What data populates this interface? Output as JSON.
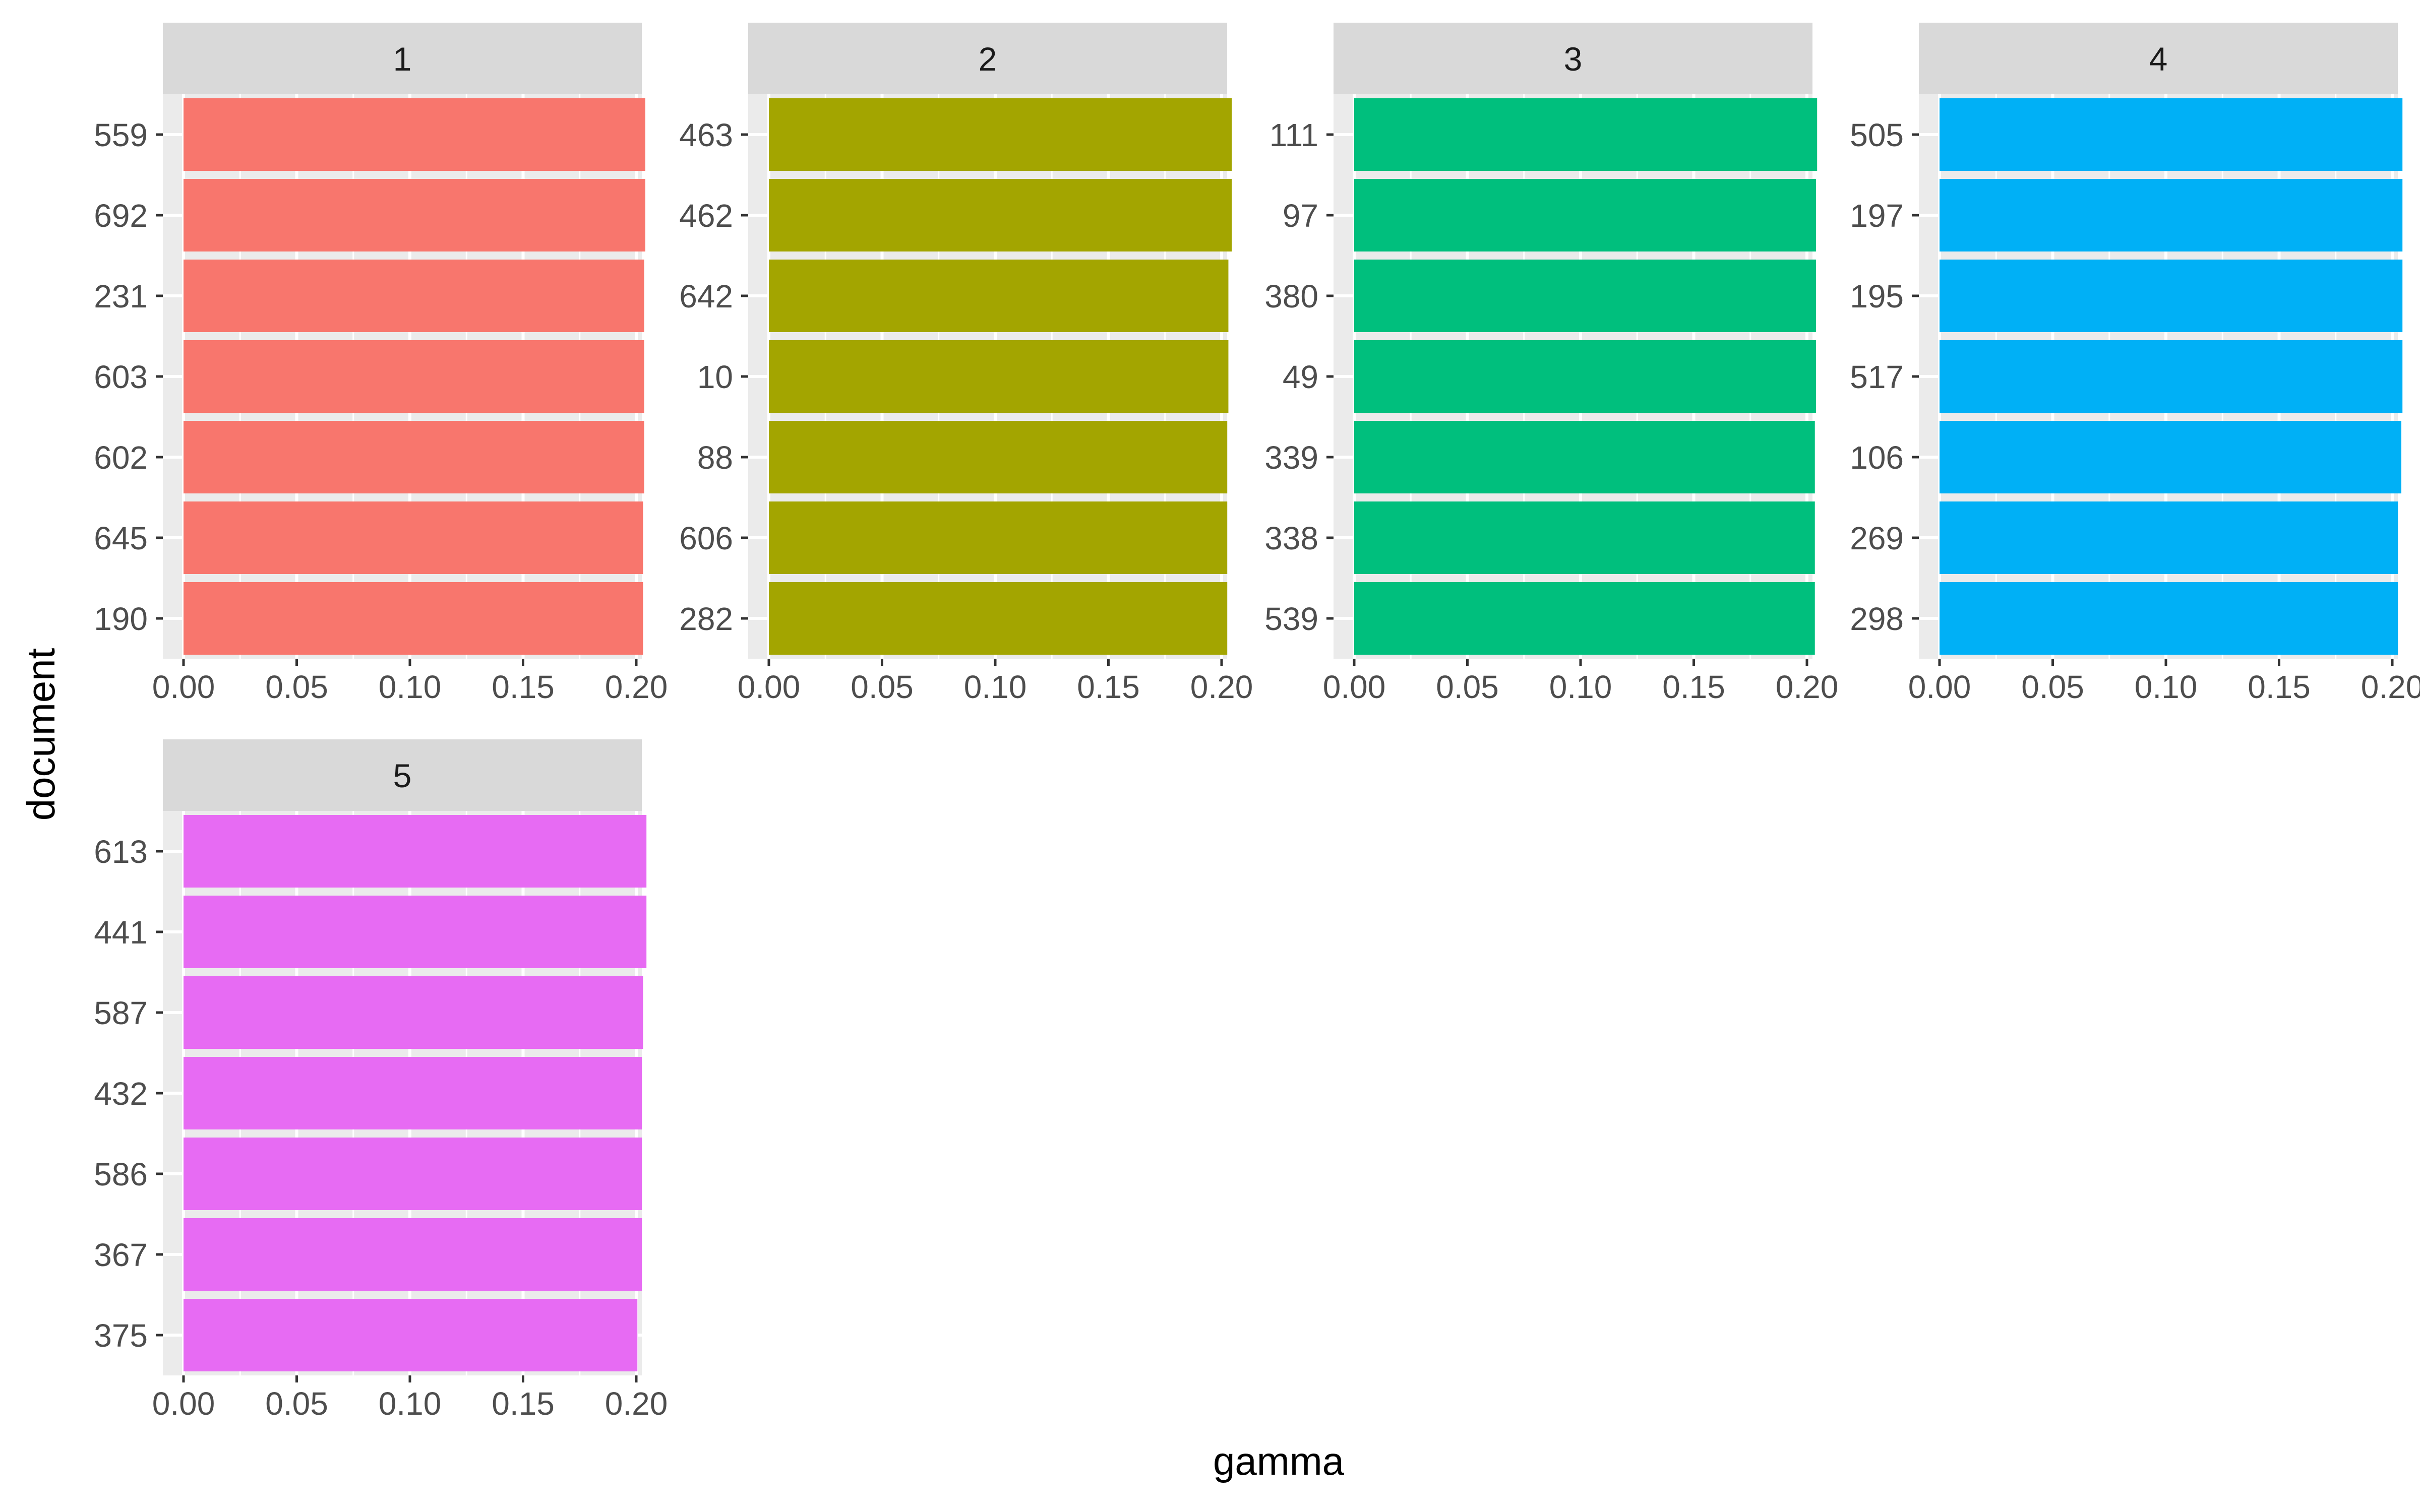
{
  "chart_data": {
    "type": "bar",
    "orientation": "horizontal",
    "xlabel": "gamma",
    "ylabel": "document",
    "xlim": [
      0,
      0.21
    ],
    "xticks": [
      "0.00",
      "0.05",
      "0.10",
      "0.15",
      "0.20"
    ],
    "grid": true,
    "legend": "none",
    "panels": [
      {
        "label": "1",
        "color": "#F8766D",
        "categories": [
          "559",
          "692",
          "231",
          "603",
          "602",
          "645",
          "190"
        ],
        "values": [
          0.204,
          0.204,
          0.2035,
          0.2035,
          0.2035,
          0.203,
          0.203
        ]
      },
      {
        "label": "2",
        "color": "#A3A500",
        "categories": [
          "463",
          "462",
          "642",
          "10",
          "88",
          "606",
          "282"
        ],
        "values": [
          0.2045,
          0.2045,
          0.203,
          0.203,
          0.2025,
          0.2025,
          0.2025
        ]
      },
      {
        "label": "3",
        "color": "#00BF7D",
        "categories": [
          "111",
          "97",
          "380",
          "49",
          "339",
          "338",
          "539"
        ],
        "values": [
          0.2045,
          0.204,
          0.204,
          0.204,
          0.2035,
          0.2035,
          0.2035
        ]
      },
      {
        "label": "4",
        "color": "#00B0F6",
        "categories": [
          "505",
          "197",
          "195",
          "517",
          "106",
          "269",
          "298"
        ],
        "values": [
          0.2045,
          0.2045,
          0.2045,
          0.2045,
          0.204,
          0.2025,
          0.2025
        ]
      },
      {
        "label": "5",
        "color": "#E76BF3",
        "categories": [
          "613",
          "441",
          "587",
          "432",
          "586",
          "367",
          "375"
        ],
        "values": [
          0.2045,
          0.2045,
          0.203,
          0.2025,
          0.2025,
          0.2025,
          0.2005
        ]
      }
    ]
  }
}
